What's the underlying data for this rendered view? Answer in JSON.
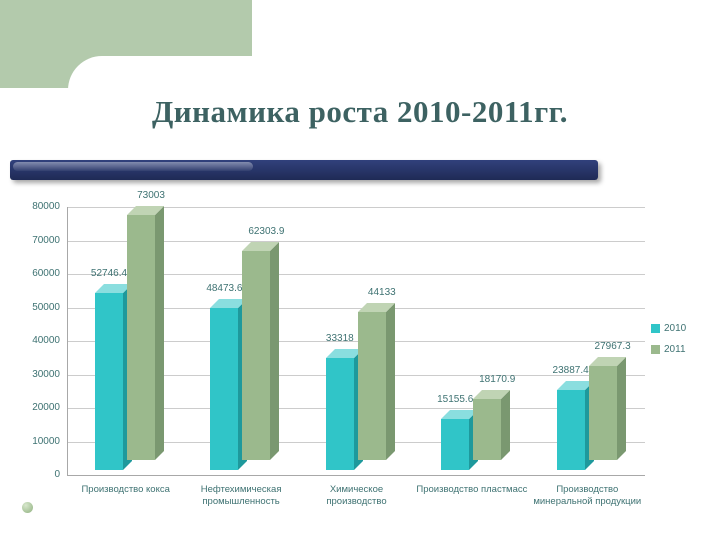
{
  "slide": {
    "title": "Динамика роста 2010-2011гг."
  },
  "theme": {
    "template_green": "#b3caac",
    "navy_bar_top": "#31417c",
    "navy_bar_bottom": "#1f2a55",
    "title_color": "#3d6262",
    "label_color": "#3e7272",
    "gridline_color": "#cccccc",
    "bullet_color": "#8fb07f"
  },
  "chart_data": {
    "type": "bar",
    "title": "Динамика роста 2010-2011гг.",
    "categories": [
      "Производство кокса",
      "Нефтехимическая промышленность",
      "Химическое производство",
      "Производство пластмасс",
      "Производство минеральной продукции"
    ],
    "series": [
      {
        "name": "2010",
        "color": "#30c5c8",
        "color_light": "#8adedf",
        "color_dark": "#1e999c",
        "values": [
          52746.4,
          48473.6,
          33318,
          15155.6,
          23887.4
        ],
        "value_labels": [
          "52746.4",
          "48473.6",
          "33318",
          "15155.6",
          "23887.4"
        ]
      },
      {
        "name": "2011",
        "color": "#9bb98d",
        "color_light": "#c0d4b4",
        "color_dark": "#7a9870",
        "values": [
          73003,
          62303.9,
          44133,
          18170.9,
          27967.3
        ],
        "value_labels": [
          "73003",
          "62303.9",
          "44133",
          "18170.9",
          "27967.3"
        ]
      }
    ],
    "ylim": [
      0,
      80000
    ],
    "ytick_step": 10000,
    "yticks": [
      "80000",
      "70000",
      "60000",
      "50000",
      "40000",
      "30000",
      "20000",
      "10000",
      "0"
    ],
    "grid": true,
    "legend_position": "right",
    "style": "3d-clustered-column"
  }
}
